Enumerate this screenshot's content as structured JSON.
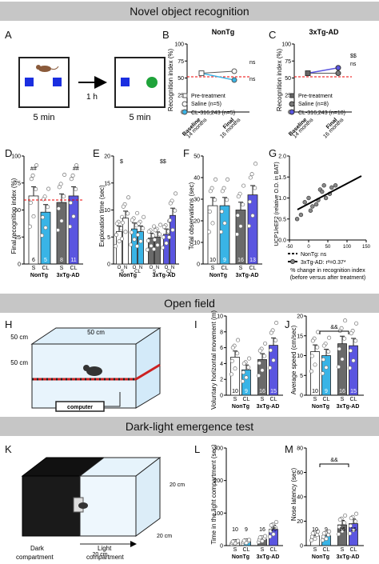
{
  "sections": [
    {
      "title": "Novel object recognition"
    },
    {
      "title": "Open field"
    },
    {
      "title": "Dark-light emergence test"
    }
  ],
  "panels": [
    "A",
    "B",
    "C",
    "D",
    "E",
    "F",
    "G",
    "H",
    "I",
    "J",
    "K",
    "L",
    "M"
  ],
  "panelA": {
    "interval": "1 h",
    "time_left": "5 min",
    "time_right": "5 min"
  },
  "panelB": {
    "title": "NonTg",
    "ylabel": "Recognition index (%)",
    "yticks": [
      "0",
      "25",
      "50",
      "75",
      "100"
    ],
    "xticks": [
      {
        "l1": "Baseline",
        "l2": "14 months"
      },
      {
        "l1": "Final",
        "l2": "16 months"
      }
    ],
    "ns1": "ns",
    "ns2": "ns",
    "legend": [
      "Pre-treatment",
      "Saline (n=5)",
      "CL-316,243 (n=5)"
    ]
  },
  "panelC": {
    "title": "3xTg-AD",
    "ylabel": "Recognition index (%)",
    "yticks": [
      "0",
      "25",
      "50",
      "75",
      "100"
    ],
    "xticks": [
      {
        "l1": "Baseline",
        "l2": "14 months"
      },
      {
        "l1": "Final",
        "l2": "16 months"
      }
    ],
    "sig1": "$$",
    "sig2": "ns",
    "legend": [
      "Pre-treatment",
      "Saline (n=8)",
      "CL-316,243 (n=10)"
    ]
  },
  "panelD": {
    "ylabel": "Final recognition index (%)",
    "yticks": [
      "0",
      "25",
      "50",
      "75",
      "100"
    ],
    "bar_labels": [
      "S",
      "CL",
      "S",
      "CL"
    ],
    "ns": [
      "6",
      "5",
      "8",
      "11"
    ],
    "groups": [
      "NonTg",
      "3xTg-AD"
    ],
    "sig": [
      "##",
      "##"
    ]
  },
  "panelE": {
    "ylabel": "Exploration time (sec)",
    "yticks": [
      "0",
      "5",
      "10",
      "15",
      "20"
    ],
    "bar_labels": [
      "O",
      "N",
      "O",
      "N",
      "O",
      "N",
      "O",
      "N"
    ],
    "sub_labels": [
      "S",
      "CL",
      "S",
      "CL"
    ],
    "groups": [
      "NonTg",
      "3xTg-AD"
    ],
    "sig": [
      "$",
      "$$"
    ]
  },
  "panelF": {
    "ylabel": "Total observations (sec)",
    "yticks": [
      "0",
      "10",
      "20",
      "30",
      "40",
      "50"
    ],
    "bar_labels": [
      "S",
      "CL",
      "S",
      "CL"
    ],
    "ns": [
      "10",
      "9",
      "16",
      "13"
    ],
    "groups": [
      "NonTg",
      "3xTg-AD"
    ]
  },
  "panelG": {
    "ylabel_line1": "UCP1/eEF2 (relative O.D. in BAT)",
    "xlabel_line1": "% change in recognition index",
    "xlabel_line2": "(before versus after treatment)",
    "yticks": [
      "0.0",
      "0.5",
      "1.0",
      "1.5",
      "2.0"
    ],
    "xticks": [
      "-50",
      "0",
      "50",
      "100",
      "150"
    ],
    "legend": [
      "NonTg: ns",
      "3xTg-AD: r²=0.37*"
    ]
  },
  "panelH": {
    "dims": [
      "50 cm",
      "50 cm",
      "50 cm"
    ],
    "computer": "computer"
  },
  "panelI": {
    "ylabel": "Voluntary horizontal movement (m)",
    "yticks": [
      "0",
      "2",
      "4",
      "6",
      "8",
      "10"
    ],
    "bar_labels": [
      "S",
      "CL",
      "S",
      "CL"
    ],
    "ns": [
      "10",
      "9",
      "16",
      "15"
    ],
    "groups": [
      "NonTg",
      "3xTg-AD"
    ]
  },
  "panelJ": {
    "ylabel": "Average speed (cm/sec)",
    "yticks": [
      "0",
      "5",
      "10",
      "15",
      "20"
    ],
    "bar_labels": [
      "S",
      "CL",
      "S",
      "CL"
    ],
    "ns": [
      "10",
      "9",
      "16",
      "15"
    ],
    "groups": [
      "NonTg",
      "3xTg-AD"
    ],
    "sig": "&&"
  },
  "panelK": {
    "dims": [
      "20 cm",
      "20 cm",
      "20 cm"
    ],
    "dark": "Dark",
    "dark2": "compartment",
    "light": "Light",
    "light2": "compartment"
  },
  "panelL": {
    "ylabel": "Time in the light compartment (sec)",
    "yticks": [
      "0",
      "100",
      "200",
      "300"
    ],
    "bar_labels": [
      "S",
      "CL",
      "S",
      "CL"
    ],
    "ns": [
      "10",
      "9",
      "16",
      "15"
    ],
    "groups": [
      "NonTg",
      "3xTg-AD"
    ]
  },
  "panelM": {
    "ylabel": "Nose latency (sec)",
    "yticks": [
      "0",
      "20",
      "40",
      "60",
      "80"
    ],
    "bar_labels": [
      "S",
      "CL",
      "S",
      "CL"
    ],
    "ns": [
      "10",
      "9",
      "16",
      "15"
    ],
    "groups": [
      "NonTg",
      "3xTg-AD"
    ],
    "sig": "&&"
  },
  "chart_data": [
    {
      "type": "line",
      "id": "B",
      "categories": [
        "Baseline",
        "Final"
      ],
      "ylim": [
        0,
        100
      ],
      "series": [
        {
          "name": "Pre-treatment",
          "values": [
            57,
            null
          ]
        },
        {
          "name": "Saline (n=5)",
          "values": [
            57,
            60
          ]
        },
        {
          "name": "CL-316,243 (n=5)",
          "values": [
            57,
            47
          ]
        }
      ]
    },
    {
      "type": "line",
      "id": "C",
      "categories": [
        "Baseline",
        "Final"
      ],
      "ylim": [
        0,
        100
      ],
      "series": [
        {
          "name": "Pre-treatment",
          "values": [
            57,
            null
          ]
        },
        {
          "name": "Saline (n=8)",
          "values": [
            57,
            57
          ]
        },
        {
          "name": "CL-316,243 (n=10)",
          "values": [
            57,
            65
          ]
        }
      ]
    },
    {
      "type": "bar",
      "id": "D",
      "categories": [
        "S",
        "CL",
        "S",
        "CL"
      ],
      "values": [
        63,
        48,
        57,
        63
      ],
      "ylim": [
        0,
        100
      ]
    },
    {
      "type": "bar",
      "id": "E",
      "categories": [
        "O",
        "N",
        "O",
        "N",
        "O",
        "N",
        "O",
        "N"
      ],
      "values": [
        6,
        8.5,
        6.5,
        6,
        4.8,
        5,
        5.5,
        9
      ],
      "ylim": [
        0,
        20
      ]
    },
    {
      "type": "bar",
      "id": "F",
      "categories": [
        "S",
        "CL",
        "S",
        "CL"
      ],
      "values": [
        27,
        27,
        25,
        32
      ],
      "ylim": [
        0,
        50
      ]
    },
    {
      "type": "scatter",
      "id": "G",
      "xlim": [
        -50,
        150
      ],
      "ylim": [
        0,
        2
      ]
    },
    {
      "type": "bar",
      "id": "I",
      "categories": [
        "S",
        "CL",
        "S",
        "CL"
      ],
      "values": [
        4.8,
        3.2,
        4.5,
        6.3
      ],
      "ylim": [
        0,
        10
      ]
    },
    {
      "type": "bar",
      "id": "J",
      "categories": [
        "S",
        "CL",
        "S",
        "CL"
      ],
      "values": [
        11,
        10,
        13,
        12.5
      ],
      "ylim": [
        0,
        20
      ]
    },
    {
      "type": "bar",
      "id": "L",
      "categories": [
        "S",
        "CL",
        "S",
        "CL"
      ],
      "values": [
        10,
        12,
        20,
        50
      ],
      "ylim": [
        0,
        300
      ]
    },
    {
      "type": "bar",
      "id": "M",
      "categories": [
        "S",
        "CL",
        "S",
        "CL"
      ],
      "values": [
        8,
        8,
        17,
        18
      ],
      "ylim": [
        0,
        80
      ]
    }
  ]
}
